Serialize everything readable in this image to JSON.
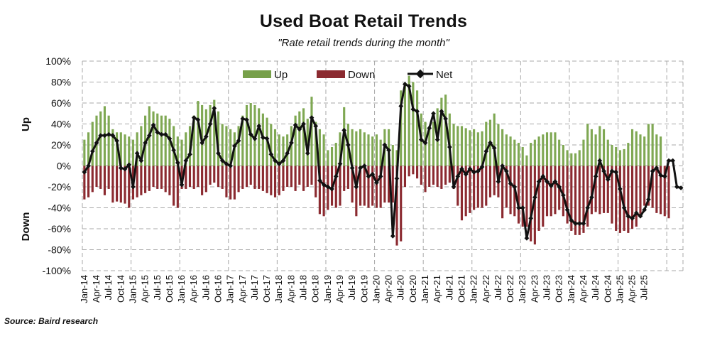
{
  "chart_data": {
    "type": "bar",
    "title": "Used Boat Retail Trends",
    "subtitle": "\"Rate retail trends during the month\"",
    "source": "Source: Baird research",
    "ylabel_up": "Up",
    "ylabel_down": "Down",
    "ylim": [
      -100,
      100
    ],
    "yticks": [
      "100%",
      "80%",
      "60%",
      "40%",
      "20%",
      "0%",
      "-20%",
      "-40%",
      "-60%",
      "-80%",
      "-100%"
    ],
    "grid": true,
    "legend_position": "top",
    "legend": [
      {
        "name": "Up",
        "color": "#77a04a"
      },
      {
        "name": "Down",
        "color": "#8b2a30"
      },
      {
        "name": "Net",
        "color": "#111111"
      }
    ],
    "x_tick_labels": [
      "Jan-14",
      "Apr-14",
      "Jul-14",
      "Oct-14",
      "Jan-15",
      "Apr-15",
      "Jul-15",
      "Oct-15",
      "Jan-16",
      "Apr-16",
      "Jul-16",
      "Oct-16",
      "Jan-17",
      "Apr-17",
      "Jul-17",
      "Oct-17",
      "Jan-18",
      "Apr-18",
      "Jul-18",
      "Oct-18",
      "Jan-19",
      "Apr-19",
      "Jul-19",
      "Oct-19",
      "Jan-20",
      "Apr-20",
      "Jul-20",
      "Oct-20",
      "Jan-21",
      "Apr-21",
      "Jul-21",
      "Oct-21",
      "Jan-22",
      "Apr-22",
      "Jul-22",
      "Oct-22",
      "Jan-23",
      "Apr-23",
      "Jul-23",
      "Oct-23",
      "Jan-24",
      "Apr-24",
      "Jul-24",
      "Oct-24",
      "Jan-25",
      "Apr-25",
      "Jul-25"
    ],
    "series": [
      {
        "name": "Up",
        "values": [
          25,
          32,
          42,
          48,
          52,
          57,
          48,
          35,
          32,
          32,
          30,
          28,
          25,
          32,
          38,
          48,
          57,
          52,
          50,
          48,
          48,
          45,
          38,
          28,
          25,
          32,
          38,
          48,
          62,
          58,
          54,
          58,
          63,
          52,
          40,
          38,
          35,
          32,
          38,
          48,
          58,
          60,
          58,
          55,
          50,
          46,
          40,
          35,
          30,
          28,
          30,
          38,
          48,
          52,
          55,
          45,
          66,
          42,
          35,
          30,
          15,
          18,
          22,
          32,
          56,
          40,
          35,
          33,
          35,
          32,
          30,
          28,
          30,
          25,
          35,
          35,
          20,
          15,
          72,
          78,
          86,
          80,
          72,
          50,
          42,
          38,
          42,
          55,
          65,
          68,
          50,
          40,
          38,
          38,
          36,
          34,
          35,
          32,
          33,
          42,
          44,
          50,
          40,
          35,
          30,
          28,
          25,
          22,
          18,
          10,
          22,
          25,
          28,
          30,
          32,
          32,
          32,
          25,
          20,
          15,
          12,
          12,
          15,
          25,
          40,
          35,
          30,
          38,
          35,
          25,
          20,
          18,
          15,
          16,
          22,
          35,
          33,
          30,
          28,
          40,
          40,
          30,
          28
        ]
      },
      {
        "name": "Down",
        "values": [
          -32,
          -30,
          -25,
          -20,
          -22,
          -28,
          -22,
          -35,
          -34,
          -35,
          -36,
          -40,
          -32,
          -30,
          -28,
          -26,
          -24,
          -20,
          -22,
          -22,
          -25,
          -28,
          -38,
          -40,
          -22,
          -22,
          -20,
          -22,
          -20,
          -28,
          -25,
          -18,
          -16,
          -20,
          -22,
          -30,
          -32,
          -32,
          -25,
          -22,
          -20,
          -18,
          -22,
          -22,
          -24,
          -26,
          -28,
          -30,
          -28,
          -24,
          -20,
          -20,
          -24,
          -18,
          -24,
          -20,
          -18,
          -30,
          -46,
          -48,
          -42,
          -38,
          -40,
          -38,
          -24,
          -22,
          -35,
          -48,
          -38,
          -38,
          -40,
          -38,
          -40,
          -40,
          -35,
          -35,
          -35,
          -76,
          -72,
          -20,
          -10,
          -8,
          -12,
          -18,
          -25,
          -20,
          -18,
          -20,
          -22,
          -18,
          -16,
          -22,
          -38,
          -52,
          -48,
          -45,
          -42,
          -40,
          -40,
          -38,
          -30,
          -28,
          -30,
          -50,
          -40,
          -46,
          -48,
          -55,
          -58,
          -58,
          -72,
          -75,
          -62,
          -58,
          -48,
          -48,
          -46,
          -42,
          -48,
          -55,
          -62,
          -66,
          -66,
          -64,
          -58,
          -46,
          -44,
          -46,
          -45,
          -45,
          -55,
          -62,
          -64,
          -62,
          -64,
          -60,
          -58,
          -46,
          -38,
          -38,
          -40,
          -45,
          -46,
          -48,
          -50
        ]
      },
      {
        "name": "Net",
        "values": [
          -6,
          0,
          14,
          22,
          29,
          29,
          30,
          29,
          24,
          -2,
          -3,
          1,
          -20,
          12,
          5,
          22,
          29,
          39,
          32,
          30,
          30,
          26,
          15,
          3,
          -18,
          5,
          11,
          46,
          44,
          22,
          28,
          40,
          55,
          12,
          5,
          2,
          0,
          19,
          24,
          45,
          44,
          30,
          26,
          38,
          27,
          26,
          11,
          5,
          2,
          5,
          12,
          22,
          39,
          35,
          40,
          12,
          46,
          38,
          -14,
          -18,
          -20,
          -22,
          -10,
          2,
          34,
          20,
          -2,
          -20,
          -2,
          0,
          -10,
          -8,
          -16,
          -10,
          20,
          15,
          -67,
          -12,
          57,
          78,
          76,
          54,
          52,
          25,
          22,
          36,
          50,
          25,
          52,
          45,
          18,
          -20,
          -10,
          -3,
          -8,
          -3,
          -6,
          -5,
          -1,
          14,
          22,
          17,
          -15,
          0,
          -5,
          -17,
          -20,
          -40,
          -40,
          -69,
          -50,
          -30,
          -15,
          -10,
          -15,
          -19,
          -15,
          -20,
          -28,
          -42,
          -52,
          -55,
          -55,
          -55,
          -40,
          -30,
          -10,
          5,
          -5,
          -13,
          -5,
          -6,
          -22,
          -40,
          -48,
          -50,
          -45,
          -48,
          -42,
          -32,
          -5,
          -2,
          -9,
          -10,
          5,
          5,
          -20,
          -21
        ]
      }
    ]
  }
}
